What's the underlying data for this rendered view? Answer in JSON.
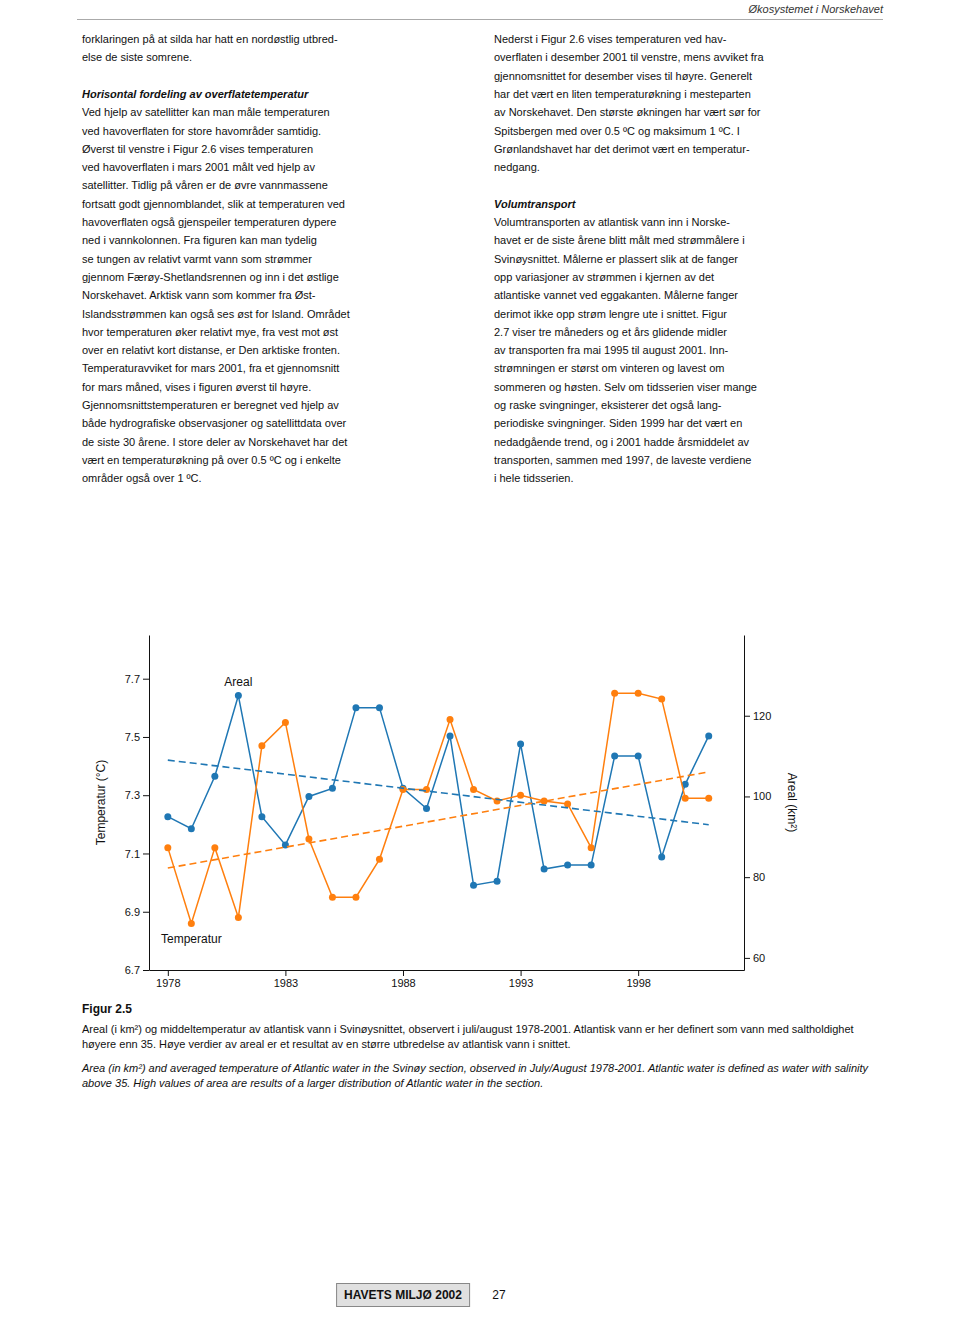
{
  "header_text": "Økosystemet i Norskehavet",
  "columns": [
    [
      {
        "lines": [
          "forklaringen på at silda har hatt en nordøstlig utbred-",
          "else de siste somrene."
        ]
      },
      {
        "heading": "Horisontal fordeling av overflatetemperatur",
        "lines": [
          "Ved hjelp av satellitter kan man måle temperaturen",
          "ved havoverflaten for store havområder samtidig.",
          "Øverst til venstre i Figur 2.6 vises temperaturen",
          "ved havoverflaten i mars 2001 målt ved hjelp av",
          "satellitter. Tidlig på våren er de øvre vannmassene",
          "fortsatt godt gjennomblandet, slik at temperaturen ved",
          "havoverflaten også gjenspeiler temperaturen dypere",
          "ned i vannkolonnen. Fra figuren kan man tydelig",
          "se tungen av relativt varmt vann som strømmer",
          "gjennom Færøy-Shetlandsrennen og inn i det østlige",
          "Norskehavet. Arktisk vann som kommer fra Øst-",
          "Islandsstrømmen kan også ses øst for Island. Området",
          "hvor temperaturen øker relativt mye, fra vest mot øst",
          "over en relativt kort distanse, er Den arktiske fronten.",
          "Temperaturavviket for mars 2001, fra et gjennomsnitt",
          "for mars måned, vises i figuren øverst til høyre.",
          "Gjennomsnittstemperaturen er beregnet ved hjelp av",
          "både hydrografiske observasjoner og satellittdata over",
          "de siste 30 årene. I store deler av Norskehavet har det",
          "vært en temperaturøkning på over 0.5 ºC og i enkelte",
          "områder også over 1 ºC."
        ]
      }
    ],
    [
      {
        "lines": [
          "Nederst i Figur 2.6 vises temperaturen ved hav-",
          "overflaten i desember 2001 til venstre, mens avviket fra",
          "gjennomsnittet for desember vises til høyre. Generelt",
          "har det vært en liten temperaturøkning i mesteparten",
          "av Norskehavet. Den største økningen har vært sør for",
          "Spitsbergen med over 0.5 ºC og maksimum 1 ºC. I",
          "Grønlandshavet har det derimot vært en temperatur-",
          "nedgang."
        ]
      },
      {
        "heading": "Volumtransport",
        "lines": [
          "Volumtransporten av atlantisk vann inn i Norske-",
          "havet er de siste årene blitt målt med strømmålere i",
          "Svinøysnittet. Målerne er plassert slik at de fanger",
          "opp variasjoner av strømmen i kjernen av det",
          "atlantiske vannet ved eggakanten. Målerne fanger",
          "derimot ikke opp strøm lengre ute i snittet. Figur",
          "2.7 viser tre måneders og et års glidende midler",
          "av transporten fra mai 1995 til august 2001. Inn-",
          "strømningen er størst om vinteren og lavest om",
          "sommeren og høsten. Selv om tidsserien viser mange",
          "og raske svingninger, eksisterer det også lang-",
          "periodiske svingninger. Siden 1999 har det vært en",
          "nedadgående trend, og i 2001 hadde årsmiddelet av",
          "transporten, sammen med 1997, de laveste verdiene",
          "i hele tidsserien."
        ]
      }
    ]
  ],
  "chart_data": {
    "type": "line",
    "x": [
      1978,
      1979,
      1980,
      1981,
      1982,
      1983,
      1984,
      1985,
      1986,
      1987,
      1988,
      1989,
      1990,
      1991,
      1992,
      1993,
      1994,
      1995,
      1996,
      1997,
      1998,
      1999,
      2000,
      2001
    ],
    "xlim": [
      1977.2,
      2002.5
    ],
    "xticks": [
      1978,
      1983,
      1988,
      1993,
      1998
    ],
    "ylim": [
      6.7,
      7.85
    ],
    "yticks": [
      6.7,
      6.9,
      7.1,
      7.3,
      7.5,
      7.7
    ],
    "y2lim": [
      57,
      140
    ],
    "y2ticks": [
      60,
      80,
      100,
      120
    ],
    "ylabel": "Temperatur (°C)",
    "y2label": "Areal (km²)",
    "grid": false,
    "series": [
      {
        "name": "Areal",
        "axis": "y2",
        "marker": "circle",
        "line_style": "solid",
        "values": [
          95,
          92,
          105,
          125,
          95,
          88,
          100,
          102,
          122,
          122,
          102,
          97,
          115,
          78,
          79,
          113,
          82,
          83,
          83,
          110,
          110,
          85,
          103,
          115
        ]
      },
      {
        "name": "Temperatur",
        "axis": "y",
        "marker": "circle",
        "line_style": "solid",
        "values": [
          7.12,
          6.86,
          7.12,
          6.88,
          7.47,
          7.55,
          7.15,
          6.95,
          6.95,
          7.08,
          7.32,
          7.32,
          7.56,
          7.32,
          7.28,
          7.3,
          7.28,
          7.27,
          7.12,
          7.65,
          7.65,
          7.63,
          7.29,
          7.29
        ]
      },
      {
        "axis": "y2",
        "line_style": "dashed",
        "x": [
          1978,
          2001
        ],
        "values": [
          109,
          93
        ]
      },
      {
        "axis": "y",
        "line_style": "dashed",
        "x": [
          1978,
          2001
        ],
        "values": [
          7.05,
          7.38
        ]
      }
    ]
  },
  "figure_label": "Figur 2.5",
  "caption": "Areal (i km²) og middeltemperatur av atlantisk vann i Svinøysnittet, observert i juli/august 1978-2001. Atlantisk vann er her definert som vann med saltholdighet høyere enn 35. Høye verdier av areal er et resultat av en større utbredelse av atlantisk vann i snittet.",
  "caption_english": "Area (in km²) and averaged temperature of Atlantic water in the Svinøy section, observed in July/August 1978-2001. Atlantic water is defined as water with salinity above 35. High values of area are results of a larger distribution of Atlantic water in the section.",
  "footer_text": "HAVETS MILJØ 2002",
  "footer_number": "27"
}
